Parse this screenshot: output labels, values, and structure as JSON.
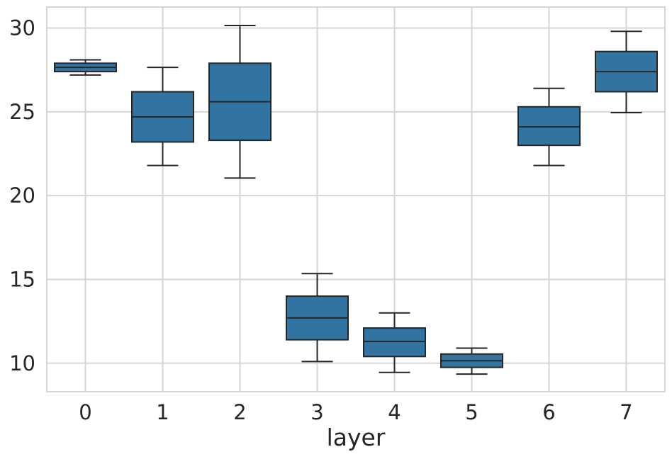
{
  "figure": {
    "background": "#ffffff"
  },
  "chart_data": {
    "type": "box",
    "title": "",
    "xlabel": "layer",
    "ylabel": "",
    "categories": [
      "0",
      "1",
      "2",
      "3",
      "4",
      "5",
      "6",
      "7"
    ],
    "y_ticks": [
      30,
      25,
      20,
      15,
      10
    ],
    "ylim": [
      8.3,
      31.25
    ],
    "grid": true,
    "legend": null,
    "colors": {
      "box_fill": "#3274a1",
      "box_edge": "#262626",
      "whisker": "#262626",
      "median": "#262626",
      "grid": "#d6d6d6",
      "spine": "#d6d6d6",
      "text": "#262626"
    },
    "boxes": [
      {
        "category": "0",
        "whisker_low": 27.2,
        "q1": 27.4,
        "median": 27.65,
        "q3": 27.9,
        "whisker_high": 28.1
      },
      {
        "category": "1",
        "whisker_low": 21.8,
        "q1": 23.2,
        "median": 24.7,
        "q3": 26.2,
        "whisker_high": 27.65
      },
      {
        "category": "2",
        "whisker_low": 21.05,
        "q1": 23.3,
        "median": 25.6,
        "q3": 27.9,
        "whisker_high": 30.15
      },
      {
        "category": "3",
        "whisker_low": 10.1,
        "q1": 11.4,
        "median": 12.7,
        "q3": 14.0,
        "whisker_high": 15.35
      },
      {
        "category": "4",
        "whisker_low": 9.45,
        "q1": 10.4,
        "median": 11.3,
        "q3": 12.1,
        "whisker_high": 13.0
      },
      {
        "category": "5",
        "whisker_low": 9.35,
        "q1": 9.75,
        "median": 10.15,
        "q3": 10.55,
        "whisker_high": 10.9
      },
      {
        "category": "6",
        "whisker_low": 21.8,
        "q1": 23.0,
        "median": 24.1,
        "q3": 25.3,
        "whisker_high": 26.4
      },
      {
        "category": "7",
        "whisker_low": 24.95,
        "q1": 26.2,
        "median": 27.4,
        "q3": 28.6,
        "whisker_high": 29.8
      }
    ]
  }
}
